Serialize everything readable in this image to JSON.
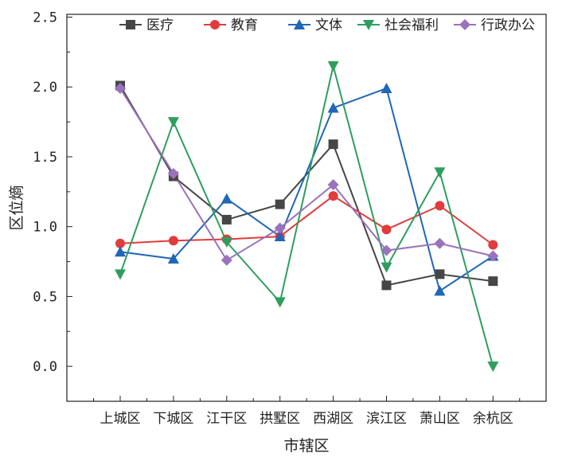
{
  "chart_data": {
    "type": "line",
    "title": "",
    "xlabel": "市辖区",
    "ylabel": "区位熵",
    "categories": [
      "上城区",
      "下城区",
      "江干区",
      "拱墅区",
      "西湖区",
      "滨江区",
      "萧山区",
      "余杭区"
    ],
    "ylim": [
      -0.25,
      2.52
    ],
    "yticks": [
      "0.0",
      "0.5",
      "1.0",
      "1.5",
      "2.0",
      "2.5"
    ],
    "ytick_values": [
      0,
      0.5,
      1,
      1.5,
      2,
      2.5
    ],
    "legend_position": "top",
    "series": [
      {
        "name": "医疗",
        "color": "#464646",
        "marker": "square",
        "values": [
          2.01,
          1.36,
          1.05,
          1.16,
          1.59,
          0.58,
          0.66,
          0.61
        ]
      },
      {
        "name": "教育",
        "color": "#e03c3c",
        "marker": "circle",
        "values": [
          0.88,
          0.9,
          0.91,
          0.93,
          1.22,
          0.98,
          1.15,
          0.87
        ]
      },
      {
        "name": "文体",
        "color": "#2166b8",
        "marker": "triangle-up",
        "values": [
          0.82,
          0.77,
          1.2,
          0.93,
          1.85,
          1.99,
          0.54,
          0.79
        ]
      },
      {
        "name": "社会福利",
        "color": "#2e9e5e",
        "marker": "triangle-down",
        "values": [
          0.66,
          1.75,
          0.89,
          0.46,
          2.15,
          0.71,
          1.39,
          0.0
        ]
      },
      {
        "name": "行政办公",
        "color": "#9a72bd",
        "marker": "diamond",
        "values": [
          1.99,
          1.38,
          0.76,
          0.99,
          1.3,
          0.83,
          0.88,
          0.79
        ]
      }
    ]
  }
}
